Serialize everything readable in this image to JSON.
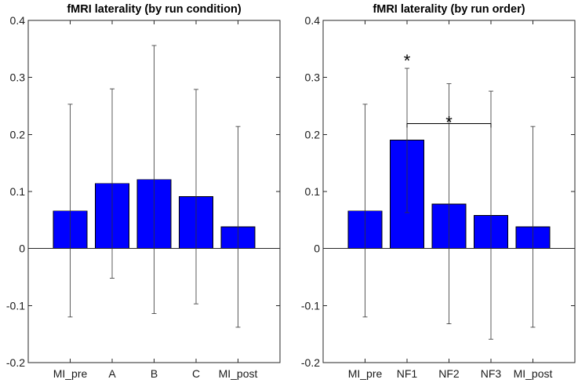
{
  "chart_data": [
    {
      "type": "bar",
      "title": "fMRI laterality (by run condition)",
      "categories": [
        "MI_pre",
        "A",
        "B",
        "C",
        "MI_post"
      ],
      "values": [
        0.066,
        0.114,
        0.121,
        0.091,
        0.038
      ],
      "error_upper": [
        0.253,
        0.28,
        0.356,
        0.279,
        0.214
      ],
      "error_lower": [
        -0.12,
        -0.052,
        -0.114,
        -0.097,
        -0.138
      ],
      "ylim": [
        -0.2,
        0.4
      ],
      "yticks": [
        "-0.2",
        "-0.1",
        "0",
        "0.1",
        "0.2",
        "0.3",
        "0.4"
      ],
      "xlabel": "",
      "ylabel": "",
      "bar_color": "#0000ff",
      "annotations": []
    },
    {
      "type": "bar",
      "title": "fMRI laterality (by run order)",
      "categories": [
        "MI_pre",
        "NF1",
        "NF2",
        "NF3",
        "MI_post"
      ],
      "values": [
        0.066,
        0.19,
        0.078,
        0.058,
        0.038
      ],
      "error_upper": [
        0.253,
        0.316,
        0.289,
        0.276,
        0.214
      ],
      "error_lower": [
        -0.12,
        0.063,
        -0.132,
        -0.159,
        -0.138
      ],
      "ylim": [
        -0.2,
        0.4
      ],
      "yticks": [
        "-0.2",
        "-0.1",
        "0",
        "0.1",
        "0.2",
        "0.3",
        "0.4"
      ],
      "xlabel": "",
      "ylabel": "",
      "bar_color": "#0000ff",
      "annotations": [
        {
          "kind": "star",
          "text": "*",
          "category_index": 1,
          "value": 0.316
        },
        {
          "kind": "bracket",
          "text": "*",
          "from_index": 1,
          "to_index": 3,
          "value": 0.219
        }
      ]
    }
  ]
}
